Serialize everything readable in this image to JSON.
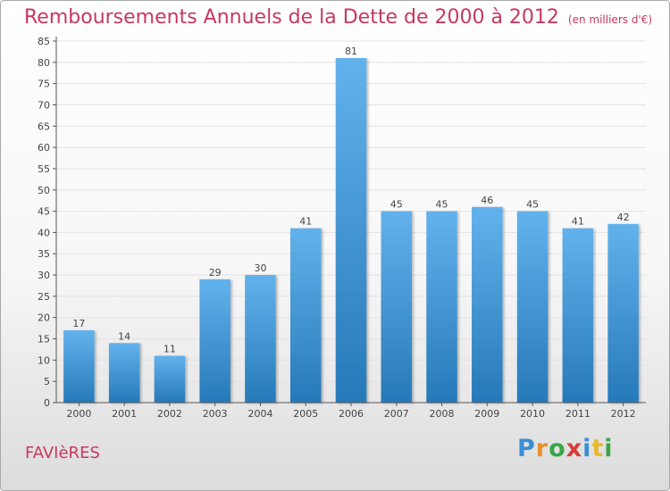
{
  "header": {
    "title": "Remboursements Annuels de la Dette de 2000 à 2012",
    "unit": "(en milliers d'€)"
  },
  "footer": {
    "commune": "FAVIèRES",
    "brand": {
      "letters": [
        {
          "ch": "P",
          "color": "#3a8fd4"
        },
        {
          "ch": "r",
          "color": "#e8912c"
        },
        {
          "ch": "o",
          "color": "#3aa548"
        },
        {
          "ch": "x",
          "color": "#d93a3a"
        },
        {
          "ch": "i",
          "color": "#3a8fd4"
        },
        {
          "ch": "t",
          "color": "#e8b92c"
        },
        {
          "ch": "i",
          "color": "#3aa548"
        }
      ]
    }
  },
  "colors": {
    "title": "#c8385e",
    "bar_top": "#62b2ec",
    "bar_bottom": "#2679b9",
    "grid": "#e3e3e3",
    "axis": "#555555"
  },
  "chart_data": {
    "type": "bar",
    "title": "Remboursements Annuels de la Dette de 2000 à 2012",
    "ylabel": "en milliers d'€",
    "xlabel": "",
    "categories": [
      "2000",
      "2001",
      "2002",
      "2003",
      "2004",
      "2005",
      "2006",
      "2007",
      "2008",
      "2009",
      "2010",
      "2011",
      "2012"
    ],
    "values": [
      17,
      14,
      11,
      29,
      30,
      41,
      81,
      45,
      45,
      46,
      45,
      41,
      42
    ],
    "ylim": [
      0,
      85
    ],
    "yticks": [
      0,
      5,
      10,
      15,
      20,
      25,
      30,
      35,
      40,
      45,
      50,
      55,
      60,
      65,
      70,
      75,
      80,
      85
    ],
    "grid": true
  }
}
